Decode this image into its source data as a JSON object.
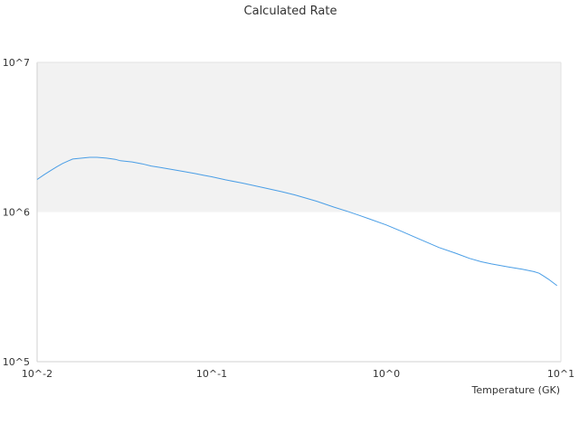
{
  "chart_data": {
    "type": "line",
    "title": "Calculated Rate",
    "xlabel": "Temperature (GK)",
    "ylabel": "",
    "x_scale": "log",
    "y_scale": "log",
    "xlim": [
      0.01,
      10
    ],
    "ylim": [
      100000,
      10000000
    ],
    "x_ticks": [
      "10^-2",
      "10^-1",
      "10^0",
      "10^1"
    ],
    "y_ticks": [
      "10^5",
      "10^6",
      "10^7"
    ],
    "grid": false,
    "legend": "none",
    "band": {
      "y_from": 1000000,
      "y_to": 10000000,
      "color": "#f2f2f2"
    },
    "series": [
      {
        "color": "#4a9ee6",
        "x": [
          0.01,
          0.011,
          0.012,
          0.013,
          0.014,
          0.015,
          0.016,
          0.018,
          0.02,
          0.022,
          0.025,
          0.028,
          0.03,
          0.035,
          0.04,
          0.045,
          0.05,
          0.06,
          0.07,
          0.08,
          0.09,
          0.1,
          0.12,
          0.15,
          0.2,
          0.25,
          0.3,
          0.4,
          0.5,
          0.6,
          0.7,
          0.8,
          1.0,
          1.2,
          1.5,
          2.0,
          2.5,
          3.0,
          3.5,
          4.0,
          5.0,
          6.0,
          7.0,
          7.5,
          8.0,
          8.5,
          9.0,
          9.5
        ],
        "y": [
          1650000,
          1780000,
          1900000,
          2010000,
          2110000,
          2190000,
          2260000,
          2290000,
          2320000,
          2320000,
          2290000,
          2250000,
          2200000,
          2160000,
          2100000,
          2030000,
          1990000,
          1920000,
          1860000,
          1810000,
          1760000,
          1720000,
          1640000,
          1560000,
          1450000,
          1370000,
          1300000,
          1180000,
          1080000,
          1010000,
          950000,
          900000,
          820000,
          750000,
          670000,
          580000,
          530000,
          490000,
          465000,
          450000,
          430000,
          415000,
          400000,
          390000,
          372000,
          355000,
          338000,
          322000
        ]
      }
    ]
  }
}
